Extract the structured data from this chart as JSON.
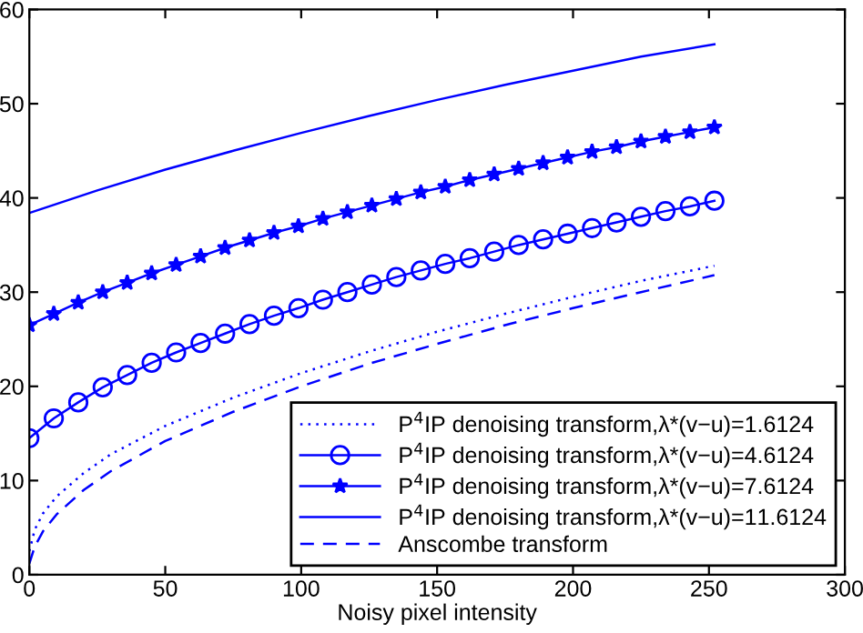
{
  "chart_data": {
    "type": "line",
    "xlabel": "Noisy pixel intensity",
    "xlim": [
      0,
      300
    ],
    "xticks": [
      0,
      50,
      100,
      150,
      200,
      250,
      300
    ],
    "ylim": [
      0,
      60
    ],
    "yticks": [
      0,
      10,
      20,
      30,
      40,
      50,
      60
    ],
    "grid": false,
    "legend": "bottom right",
    "series": [
      {
        "name": "P$^{4}$IP denoising transform,λ*(v−u)=1.6124",
        "color": "#0000ff",
        "line_style": "dotted",
        "marker": "none",
        "x": [
          0,
          2,
          5,
          10,
          20,
          30,
          50,
          75,
          100,
          125,
          150,
          175,
          200,
          225,
          252
        ],
        "values": [
          2.5,
          4.8,
          6.5,
          8.3,
          10.8,
          12.8,
          15.8,
          18.8,
          21.4,
          23.7,
          25.8,
          27.7,
          29.5,
          31.2,
          32.8
        ]
      },
      {
        "name": "P$^{4}$IP denoising transform,λ*(v−u)=4.6124",
        "color": "#0000ff",
        "line_style": "solid",
        "marker": "circle",
        "x": [
          0,
          9,
          18,
          27,
          36,
          45,
          54,
          63,
          72,
          81,
          90,
          99,
          108,
          117,
          126,
          135,
          144,
          153,
          162,
          171,
          180,
          189,
          198,
          207,
          216,
          225,
          234,
          243,
          252
        ],
        "values": [
          14.5,
          16.6,
          18.3,
          19.9,
          21.2,
          22.5,
          23.6,
          24.6,
          25.6,
          26.6,
          27.5,
          28.3,
          29.2,
          30.0,
          30.8,
          31.6,
          32.3,
          33.0,
          33.6,
          34.3,
          35.0,
          35.6,
          36.2,
          36.8,
          37.4,
          38.0,
          38.6,
          39.1,
          39.7
        ]
      },
      {
        "name": "P$^{4}$IP denoising transform,λ*(v−u)=7.6124",
        "color": "#0000ff",
        "line_style": "solid",
        "marker": "star",
        "x": [
          0,
          9,
          18,
          27,
          36,
          45,
          54,
          63,
          72,
          81,
          90,
          99,
          108,
          117,
          126,
          135,
          144,
          153,
          162,
          171,
          180,
          189,
          198,
          207,
          216,
          225,
          234,
          243,
          252
        ],
        "values": [
          26.5,
          27.7,
          28.9,
          30.0,
          31.0,
          32.0,
          32.9,
          33.8,
          34.7,
          35.5,
          36.3,
          37.0,
          37.8,
          38.5,
          39.2,
          39.9,
          40.6,
          41.2,
          41.9,
          42.5,
          43.1,
          43.7,
          44.3,
          44.9,
          45.4,
          46.0,
          46.5,
          47.0,
          47.5
        ]
      },
      {
        "name": "P$^{4}$IP denoising transform,λ*(v−u)=11.6124",
        "color": "#0000ff",
        "line_style": "solid",
        "marker": "none",
        "x": [
          0,
          25,
          50,
          75,
          100,
          125,
          150,
          175,
          200,
          225,
          252
        ],
        "values": [
          38.4,
          40.8,
          43.0,
          45.0,
          46.9,
          48.7,
          50.4,
          52.0,
          53.5,
          55.0,
          56.3
        ]
      },
      {
        "name": "Anscombe transform",
        "color": "#0000ff",
        "line_style": "dashed",
        "marker": "none",
        "x": [
          0,
          2,
          5,
          10,
          20,
          30,
          50,
          75,
          100,
          125,
          150,
          175,
          200,
          225,
          252
        ],
        "values": [
          1.2,
          3.0,
          4.6,
          6.4,
          9.0,
          11.0,
          14.2,
          17.3,
          20.0,
          22.4,
          24.5,
          26.5,
          28.3,
          30.0,
          31.8
        ]
      }
    ]
  }
}
